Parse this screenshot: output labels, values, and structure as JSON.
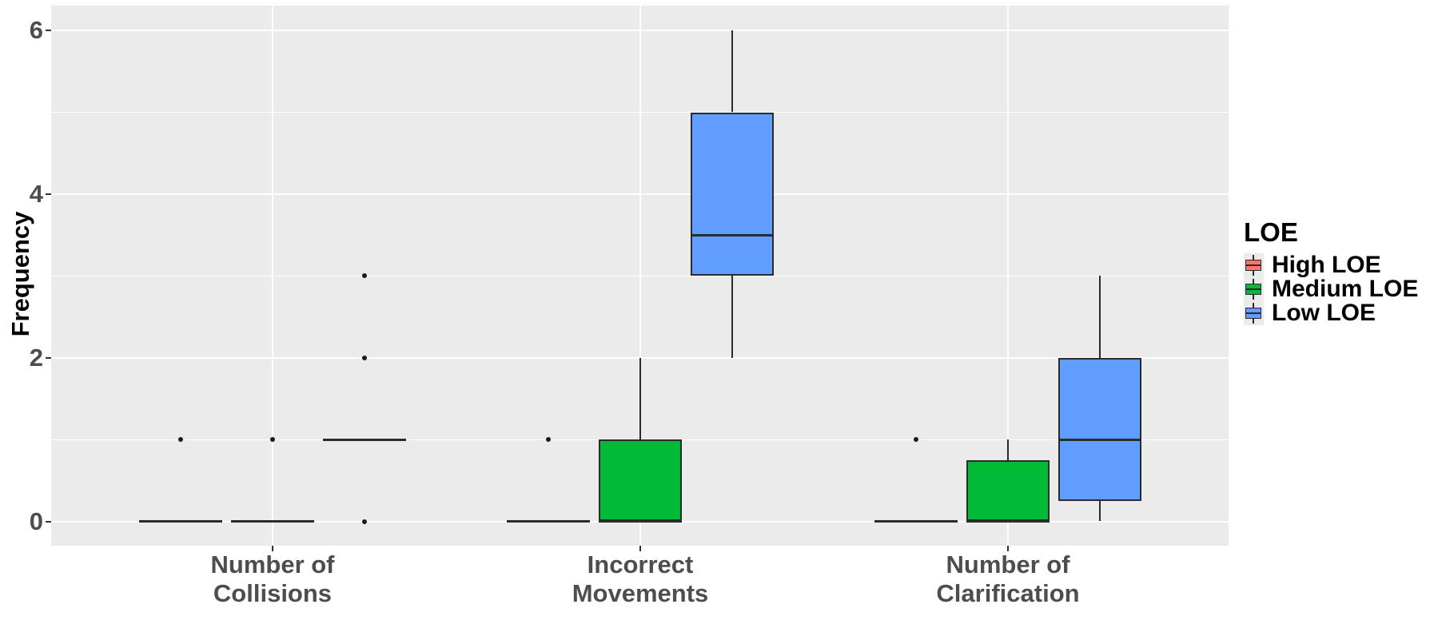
{
  "chart_data": {
    "type": "boxplot",
    "ylabel": "Frequency",
    "ylim": [
      -0.3,
      6.3
    ],
    "grid": true,
    "yticks": {
      "major": [
        0,
        2,
        4,
        6
      ],
      "minor": [
        1,
        3,
        5
      ],
      "major_labels": [
        "0",
        "2",
        "4",
        "6"
      ]
    },
    "categories": [
      {
        "id": "collisions",
        "label_lines": [
          "Number of",
          "Collisions"
        ]
      },
      {
        "id": "incorrect-movements",
        "label_lines": [
          "Incorrect",
          "Movements"
        ]
      },
      {
        "id": "clarification",
        "label_lines": [
          "Number of",
          "Clarification"
        ]
      }
    ],
    "legend": {
      "title": "LOE",
      "position": "right",
      "entries": [
        {
          "label": "High LOE",
          "color": "#F8766D"
        },
        {
          "label": "Medium LOE",
          "color": "#00BA38"
        },
        {
          "label": "Low LOE",
          "color": "#619CFF"
        }
      ]
    },
    "series": [
      {
        "name": "High LOE",
        "color": "#F8766D",
        "stats": [
          {
            "min": 0,
            "q1": 0,
            "median": 0,
            "q3": 0,
            "max": 0,
            "outliers": [
              1
            ]
          },
          {
            "min": 0,
            "q1": 0,
            "median": 0,
            "q3": 0,
            "max": 0,
            "outliers": [
              1
            ]
          },
          {
            "min": 0,
            "q1": 0,
            "median": 0,
            "q3": 0,
            "max": 0,
            "outliers": [
              1
            ]
          }
        ]
      },
      {
        "name": "Medium LOE",
        "color": "#00BA38",
        "stats": [
          {
            "min": 0,
            "q1": 0,
            "median": 0,
            "q3": 0,
            "max": 0,
            "outliers": [
              1
            ]
          },
          {
            "min": 0,
            "q1": 0,
            "median": 0,
            "q3": 1,
            "max": 2,
            "outliers": []
          },
          {
            "min": 0,
            "q1": 0,
            "median": 0,
            "q3": 0.75,
            "max": 1,
            "outliers": []
          }
        ]
      },
      {
        "name": "Low LOE",
        "color": "#619CFF",
        "stats": [
          {
            "min": 1,
            "q1": 1,
            "median": 1,
            "q3": 1,
            "max": 1,
            "outliers": [
              0,
              2,
              3
            ]
          },
          {
            "min": 2,
            "q1": 3,
            "median": 3.5,
            "q3": 5,
            "max": 6,
            "outliers": []
          },
          {
            "min": 0,
            "q1": 0.25,
            "median": 1,
            "q3": 2,
            "max": 3,
            "outliers": []
          }
        ]
      }
    ],
    "style": {
      "panel_bg": "#EBEBEB",
      "grid_color": "#FFFFFF",
      "box_line": "#2B2B2B",
      "outlier_color": "#1A1A1A",
      "tick_label_color": "#4D4D4D",
      "axis_title_color": "#000000",
      "legend_text_color": "#000000",
      "legend_key_bg": "#EBEBEB"
    }
  }
}
